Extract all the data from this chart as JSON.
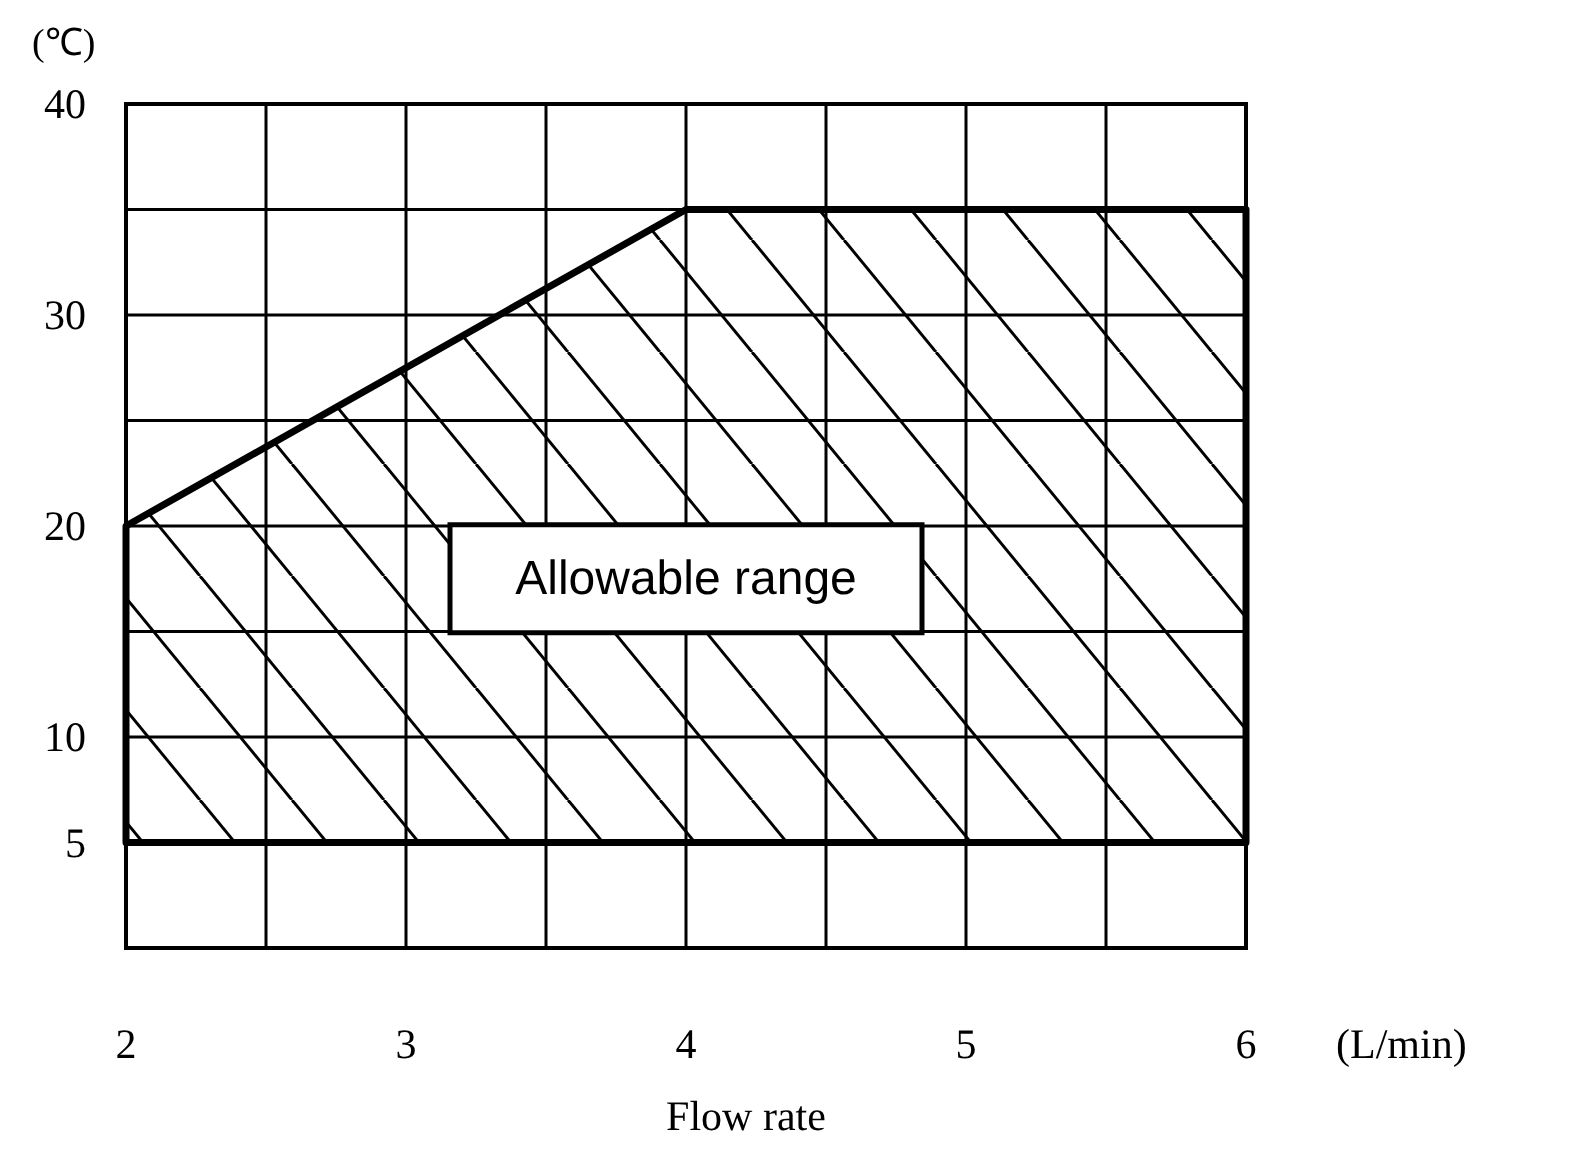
{
  "chart_data": {
    "type": "area",
    "xlabel": "Flow rate",
    "ylabel": "(℃)",
    "annotations": [
      "(L/min)"
    ],
    "xlim": [
      2,
      6
    ],
    "ylim": [
      0,
      40
    ],
    "xticks": [
      2,
      {
        "value": 2.5,
        "label": null
      },
      3,
      {
        "value": 3.5,
        "label": null
      },
      4,
      {
        "value": 4.5,
        "label": null
      },
      5,
      {
        "value": 5.5,
        "label": null
      },
      6
    ],
    "yticks": [
      {
        "value": 0,
        "label": null
      },
      5,
      10,
      {
        "value": 15,
        "label": null
      },
      20,
      {
        "value": 25,
        "label": null
      },
      30,
      {
        "value": 35,
        "label": null
      },
      40
    ],
    "grid": true,
    "ref_lines": [
      {
        "axis": "y",
        "value": 5
      }
    ],
    "series": [
      {
        "name": "Allowable range",
        "color": "#000000",
        "x": [
          2,
          4,
          6
        ],
        "values": [
          20,
          35,
          35
        ]
      }
    ]
  }
}
